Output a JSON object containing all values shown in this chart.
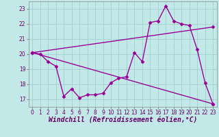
{
  "title": "",
  "xlabel": "Windchill (Refroidissement éolien,°C)",
  "ylabel": "",
  "bg_color": "#c2e8e8",
  "line_color": "#990099",
  "grid_color": "#a0d0d0",
  "xlim": [
    -0.5,
    23.5
  ],
  "ylim": [
    16.5,
    23.5
  ],
  "x_ticks": [
    0,
    1,
    2,
    3,
    4,
    5,
    6,
    7,
    8,
    9,
    10,
    11,
    12,
    13,
    14,
    15,
    16,
    17,
    18,
    19,
    20,
    21,
    22,
    23
  ],
  "y_ticks": [
    17,
    18,
    19,
    20,
    21,
    22,
    23
  ],
  "series1_x": [
    0,
    1,
    2,
    3,
    4,
    5,
    6,
    7,
    8,
    9,
    10,
    11,
    12,
    13,
    14,
    15,
    16,
    17,
    18,
    19,
    20,
    21,
    22,
    23
  ],
  "series1_y": [
    20.1,
    20.0,
    19.5,
    19.2,
    17.2,
    17.7,
    17.1,
    17.3,
    17.3,
    17.4,
    18.1,
    18.4,
    18.5,
    20.1,
    19.5,
    22.1,
    22.2,
    23.2,
    22.2,
    22.0,
    21.9,
    20.3,
    18.1,
    16.7
  ],
  "series2_x": [
    0,
    23
  ],
  "series2_y": [
    20.1,
    21.8
  ],
  "series3_x": [
    0,
    23
  ],
  "series3_y": [
    20.1,
    16.7
  ],
  "marker": "D",
  "markersize": 2.5,
  "linewidth": 1.0,
  "tick_fontsize": 5.5,
  "label_fontsize": 7.0
}
